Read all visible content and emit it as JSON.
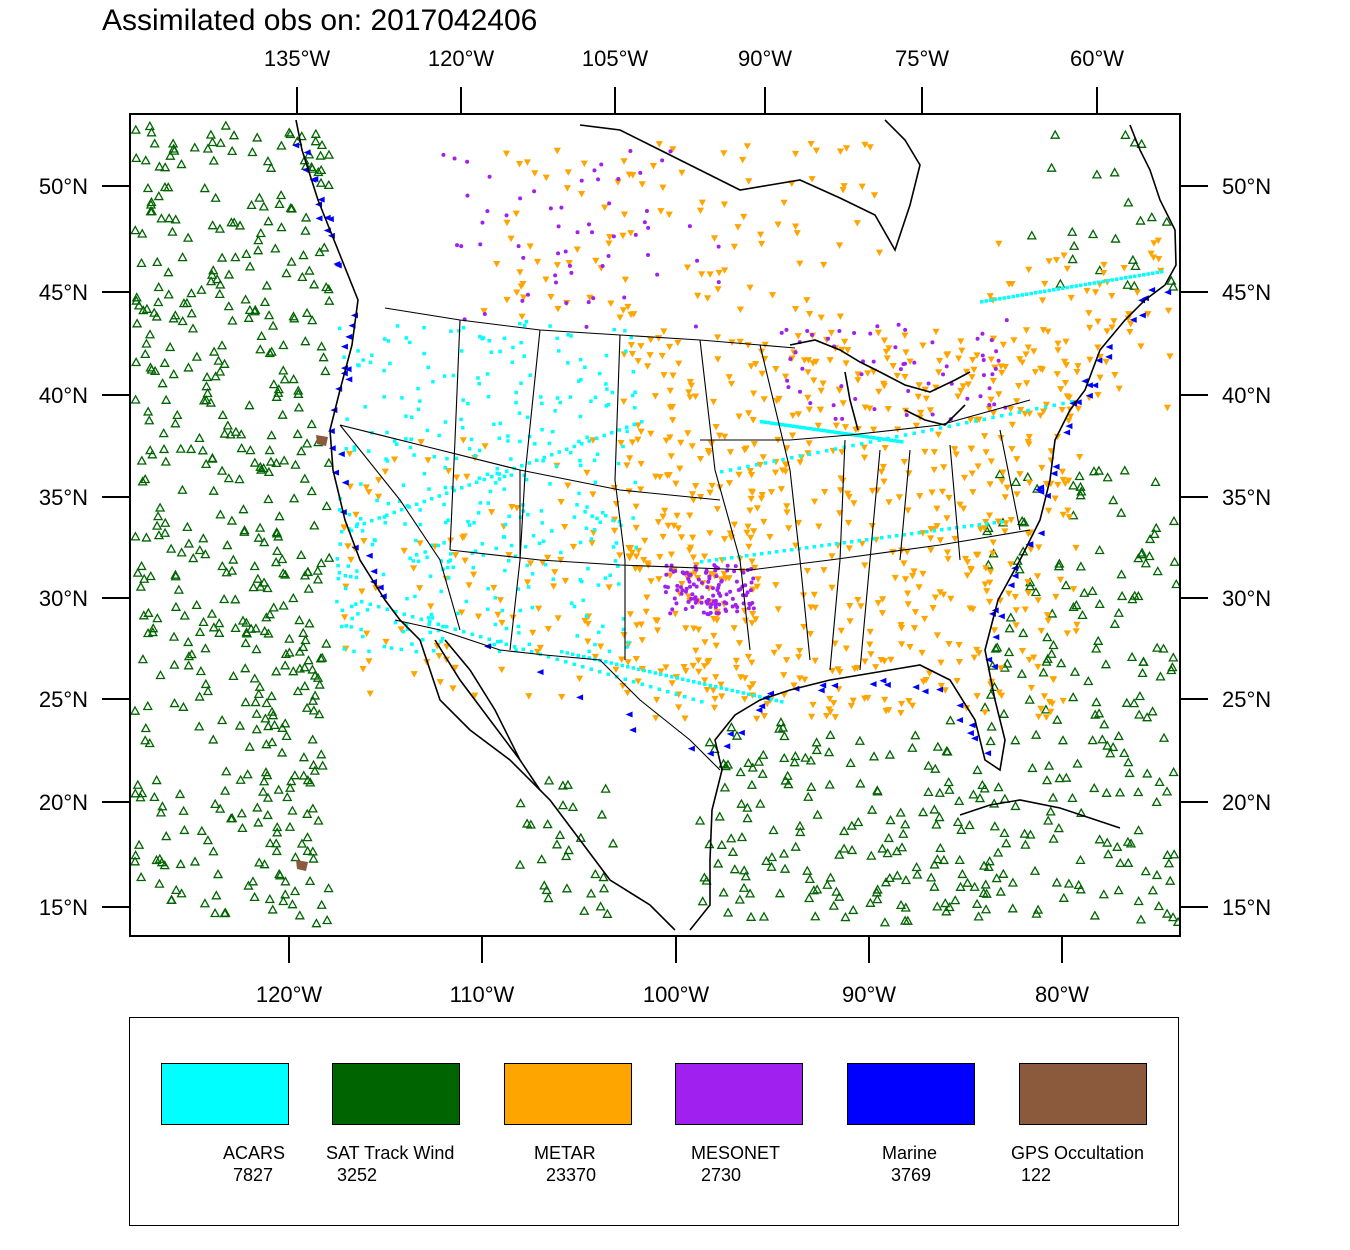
{
  "title": "Assimilated obs on: 2017042406",
  "top_lon_labels": [
    "135°W",
    "120°W",
    "105°W",
    "90°W",
    "75°W",
    "60°W"
  ],
  "bottom_lon_labels": [
    "120°W",
    "110°W",
    "100°W",
    "90°W",
    "80°W"
  ],
  "lat_labels": [
    "50°N",
    "45°N",
    "40°N",
    "35°N",
    "30°N",
    "25°N",
    "20°N",
    "15°N"
  ],
  "legend": [
    {
      "label": "ACARS",
      "count": "7827",
      "color": "#00ffff"
    },
    {
      "label": "SAT Track Wind",
      "count": "3252",
      "color": "#006400"
    },
    {
      "label": "METAR",
      "count": "23370",
      "color": "#ffa500"
    },
    {
      "label": "MESONET",
      "count": "2730",
      "color": "#a020f0"
    },
    {
      "label": "Marine",
      "count": "3769",
      "color": "#0000ff"
    },
    {
      "label": "GPS Occultation",
      "count": "122",
      "color": "#8b5a3c"
    }
  ]
}
